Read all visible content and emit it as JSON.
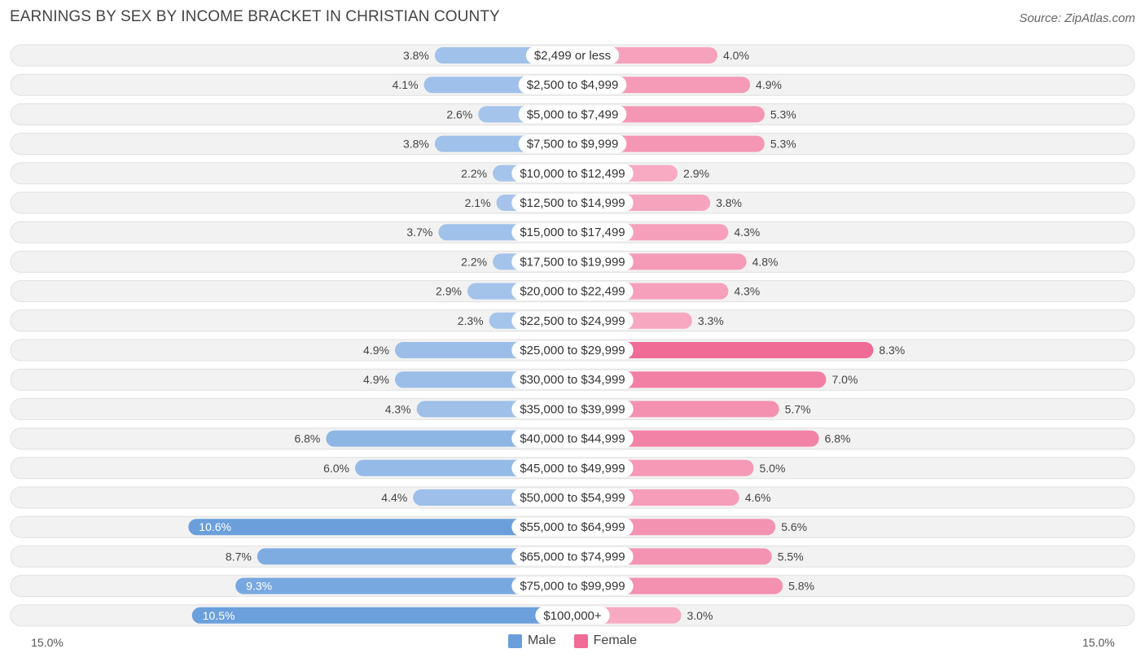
{
  "chart_data": {
    "type": "bar",
    "orientation": "horizontal-diverging",
    "title": "EARNINGS BY SEX BY INCOME BRACKET IN CHRISTIAN COUNTY",
    "source": "Source: ZipAtlas.com",
    "categories": [
      "$2,499 or less",
      "$2,500 to $4,999",
      "$5,000 to $7,499",
      "$7,500 to $9,999",
      "$10,000 to $12,499",
      "$12,500 to $14,999",
      "$15,000 to $17,499",
      "$17,500 to $19,999",
      "$20,000 to $22,499",
      "$22,500 to $24,999",
      "$25,000 to $29,999",
      "$30,000 to $34,999",
      "$35,000 to $39,999",
      "$40,000 to $44,999",
      "$45,000 to $49,999",
      "$50,000 to $54,999",
      "$55,000 to $64,999",
      "$65,000 to $74,999",
      "$75,000 to $99,999",
      "$100,000+"
    ],
    "series": [
      {
        "name": "Male",
        "values": [
          3.8,
          4.1,
          2.6,
          3.8,
          2.2,
          2.1,
          3.7,
          2.2,
          2.9,
          2.3,
          4.9,
          4.9,
          4.3,
          6.8,
          6.0,
          4.4,
          10.6,
          8.7,
          9.3,
          10.5
        ],
        "labels": [
          "3.8%",
          "4.1%",
          "2.6%",
          "3.8%",
          "2.2%",
          "2.1%",
          "3.7%",
          "2.2%",
          "2.9%",
          "2.3%",
          "4.9%",
          "4.9%",
          "4.3%",
          "6.8%",
          "6.0%",
          "4.4%",
          "10.6%",
          "8.7%",
          "9.3%",
          "10.5%"
        ]
      },
      {
        "name": "Female",
        "values": [
          4.0,
          4.9,
          5.3,
          5.3,
          2.9,
          3.8,
          4.3,
          4.8,
          4.3,
          3.3,
          8.3,
          7.0,
          5.7,
          6.8,
          5.0,
          4.6,
          5.6,
          5.5,
          5.8,
          3.0
        ],
        "labels": [
          "4.0%",
          "4.9%",
          "5.3%",
          "5.3%",
          "2.9%",
          "3.8%",
          "4.3%",
          "4.8%",
          "4.3%",
          "3.3%",
          "8.3%",
          "7.0%",
          "5.7%",
          "6.8%",
          "5.0%",
          "4.6%",
          "5.6%",
          "5.5%",
          "5.8%",
          "3.0%"
        ]
      }
    ],
    "xlim": [
      -15.0,
      15.0
    ],
    "axis_min_label": "15.0%",
    "axis_max_label": "15.0%",
    "legend_position": "bottom-center",
    "colors": {
      "male_light": "#a8c6ec",
      "male_dark": "#6a9fdc",
      "female_light": "#f8b3c8",
      "female_dark": "#f06b96",
      "row_bg": "#f2f2f2",
      "row_border": "#e0e0e0"
    }
  }
}
